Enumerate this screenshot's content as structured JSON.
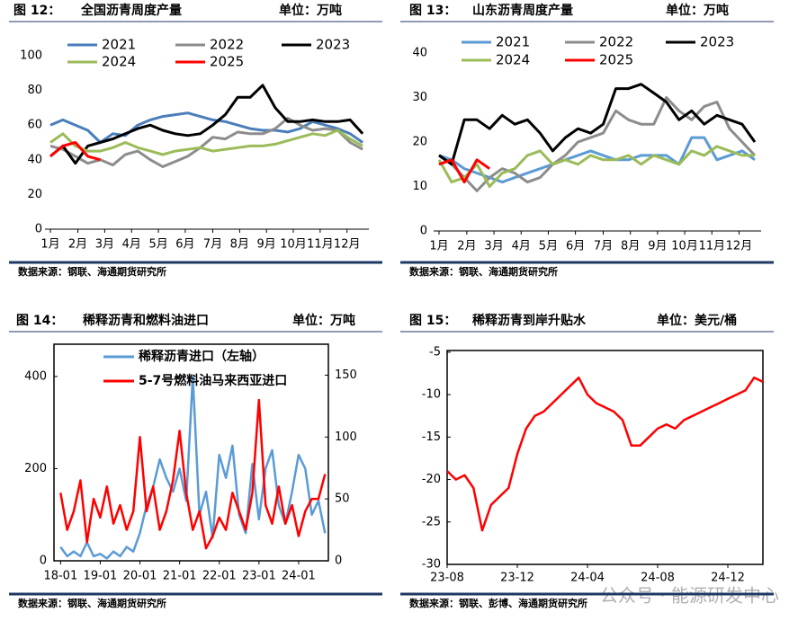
{
  "watermark": "公众号 · 能源研发中心",
  "chart_data": [
    {
      "type": "line",
      "figure_label": "图 12：",
      "title": "全国沥青周度产量",
      "unit": "单位：万吨",
      "source": "数据来源：钢联、海通期货研究所",
      "x": [
        1,
        3,
        5,
        7,
        9,
        11,
        13,
        15,
        17,
        19,
        21,
        23,
        25,
        27,
        29,
        31,
        33,
        35,
        37,
        39,
        41,
        43,
        45,
        47,
        49,
        51
      ],
      "xlim": [
        1,
        52
      ],
      "xticks": [
        {
          "value": 1,
          "label": "1月"
        },
        {
          "value": 5.4,
          "label": "2月"
        },
        {
          "value": 9.7,
          "label": "3月"
        },
        {
          "value": 14,
          "label": "4月"
        },
        {
          "value": 18.3,
          "label": "5月"
        },
        {
          "value": 22.6,
          "label": "6月"
        },
        {
          "value": 27,
          "label": "7月"
        },
        {
          "value": 31.3,
          "label": "8月"
        },
        {
          "value": 35.6,
          "label": "9月"
        },
        {
          "value": 39.9,
          "label": "10月"
        },
        {
          "value": 44.2,
          "label": "11月"
        },
        {
          "value": 48.5,
          "label": "12月"
        }
      ],
      "ylim": [
        0,
        100
      ],
      "yticks": [
        0,
        20,
        40,
        60,
        80,
        100
      ],
      "series": [
        {
          "name": "2021",
          "color": "#4a7ebb",
          "values": [
            60,
            63,
            60,
            57,
            50,
            55,
            54,
            60,
            63,
            65,
            66,
            67,
            65,
            63,
            62,
            60,
            58,
            57,
            57,
            56,
            58,
            62,
            60,
            58,
            55,
            50
          ]
        },
        {
          "name": "2022",
          "color": "#8c8c8c",
          "values": [
            48,
            46,
            42,
            38,
            40,
            37,
            43,
            45,
            40,
            36,
            39,
            42,
            47,
            53,
            52,
            56,
            55,
            55,
            58,
            64,
            60,
            57,
            58,
            57,
            50,
            46
          ]
        },
        {
          "name": "2023",
          "color": "#000000",
          "values": [
            42,
            48,
            38,
            48,
            50,
            52,
            55,
            58,
            60,
            57,
            55,
            54,
            55,
            60,
            66,
            76,
            76,
            83,
            70,
            62,
            62,
            63,
            62,
            62,
            63,
            55
          ]
        },
        {
          "name": "2024",
          "color": "#9bbb59",
          "values": [
            50,
            55,
            48,
            45,
            45,
            47,
            50,
            47,
            45,
            43,
            45,
            46,
            47,
            45,
            46,
            47,
            48,
            48,
            49,
            51,
            53,
            55,
            54,
            57,
            52,
            48
          ]
        },
        {
          "name": "2025",
          "color": "#ff0000",
          "values": [
            42,
            48,
            50,
            42,
            40,
            null,
            null,
            null,
            null,
            null,
            null,
            null,
            null,
            null,
            null,
            null,
            null,
            null,
            null,
            null,
            null,
            null,
            null,
            null,
            null,
            null
          ]
        }
      ]
    },
    {
      "type": "line",
      "figure_label": "图 13：",
      "title": "山东沥青周度产量",
      "unit": "单位：万吨",
      "source": "数据来源：钢联、海通期货研究所",
      "x": [
        1,
        3,
        5,
        7,
        9,
        11,
        13,
        15,
        17,
        19,
        21,
        23,
        25,
        27,
        29,
        31,
        33,
        35,
        37,
        39,
        41,
        43,
        45,
        47,
        49,
        51
      ],
      "xlim": [
        1,
        52
      ],
      "xticks": [
        {
          "value": 1,
          "label": "1月"
        },
        {
          "value": 5.4,
          "label": "2月"
        },
        {
          "value": 9.7,
          "label": "3月"
        },
        {
          "value": 14,
          "label": "4月"
        },
        {
          "value": 18.3,
          "label": "5月"
        },
        {
          "value": 22.6,
          "label": "6月"
        },
        {
          "value": 27,
          "label": "7月"
        },
        {
          "value": 31.3,
          "label": "8月"
        },
        {
          "value": 35.6,
          "label": "9月"
        },
        {
          "value": 39.9,
          "label": "10月"
        },
        {
          "value": 44.2,
          "label": "11月"
        },
        {
          "value": 48.5,
          "label": "12月"
        }
      ],
      "ylim": [
        0,
        40
      ],
      "yticks": [
        0,
        10,
        20,
        30,
        40
      ],
      "series": [
        {
          "name": "2021",
          "color": "#5b9bd5",
          "values": [
            17,
            16,
            14,
            13,
            12,
            11,
            12,
            13,
            14,
            15,
            16,
            17,
            18,
            17,
            16,
            16,
            17,
            17,
            17,
            15,
            21,
            21,
            16,
            17,
            18,
            16
          ]
        },
        {
          "name": "2022",
          "color": "#8c8c8c",
          "values": [
            17,
            15,
            12,
            9,
            12,
            14,
            13,
            11,
            12,
            15,
            17,
            20,
            21,
            22,
            27,
            25,
            24,
            24,
            30,
            27,
            25,
            28,
            29,
            23,
            20,
            17
          ]
        },
        {
          "name": "2023",
          "color": "#000000",
          "values": [
            17,
            15,
            25,
            25,
            23,
            26,
            24,
            25,
            22,
            18,
            21,
            23,
            22,
            24,
            32,
            32,
            33,
            31,
            29,
            25,
            27,
            24,
            26,
            25,
            24,
            20
          ]
        },
        {
          "name": "2024",
          "color": "#9bbb59",
          "values": [
            16,
            11,
            12,
            15,
            10,
            13,
            14,
            17,
            18,
            15,
            16,
            15,
            17,
            16,
            16,
            17,
            15,
            17,
            16,
            15,
            18,
            17,
            19,
            18,
            17,
            17
          ]
        },
        {
          "name": "2025",
          "color": "#ff0000",
          "values": [
            15,
            16,
            11,
            16,
            14,
            null,
            null,
            null,
            null,
            null,
            null,
            null,
            null,
            null,
            null,
            null,
            null,
            null,
            null,
            null,
            null,
            null,
            null,
            null,
            null,
            null
          ]
        }
      ]
    },
    {
      "type": "line",
      "figure_label": "图 14：",
      "title": "稀释沥青和燃料油进口",
      "unit": "单位：万吨",
      "source": "数据来源：钢联、海通期货研究所",
      "x": [
        0,
        2,
        4,
        6,
        8,
        10,
        12,
        14,
        16,
        18,
        20,
        22,
        24,
        26,
        28,
        30,
        32,
        34,
        36,
        38,
        40,
        42,
        44,
        46,
        48,
        50,
        52,
        54,
        56,
        58,
        60,
        62,
        64,
        66,
        68,
        70,
        72,
        74,
        76,
        78,
        80
      ],
      "xlim": [
        -2,
        81
      ],
      "xticks": [
        {
          "value": 0,
          "label": "18-01"
        },
        {
          "value": 12,
          "label": "19-01"
        },
        {
          "value": 24,
          "label": "20-01"
        },
        {
          "value": 36,
          "label": "21-01"
        },
        {
          "value": 48,
          "label": "22-01"
        },
        {
          "value": 60,
          "label": "23-01"
        },
        {
          "value": 72,
          "label": "24-01"
        }
      ],
      "ylim": [
        0,
        470
      ],
      "yticks": [
        0,
        200,
        400
      ],
      "y2lim": [
        0,
        175
      ],
      "y2ticks": [
        0,
        50,
        100,
        150
      ],
      "series": [
        {
          "name": "稀释沥青进口（左轴）",
          "color": "#5b9bd5",
          "values": [
            30,
            10,
            20,
            10,
            40,
            10,
            15,
            5,
            20,
            10,
            30,
            20,
            60,
            120,
            160,
            220,
            180,
            150,
            200,
            130,
            400,
            100,
            150,
            50,
            230,
            180,
            250,
            100,
            60,
            210,
            90,
            200,
            240,
            120,
            80,
            150,
            230,
            200,
            100,
            130,
            60
          ]
        },
        {
          "name": "5-7号燃料油马来西亚进口",
          "color": "#ff0000",
          "axis": "y2",
          "values": [
            55,
            25,
            40,
            65,
            15,
            50,
            35,
            60,
            30,
            45,
            25,
            40,
            100,
            40,
            60,
            25,
            40,
            65,
            105,
            55,
            25,
            40,
            10,
            20,
            35,
            25,
            55,
            40,
            25,
            55,
            130,
            45,
            30,
            60,
            30,
            45,
            20,
            40,
            50,
            50,
            70
          ]
        }
      ]
    },
    {
      "type": "line",
      "figure_label": "图 15：",
      "title": "稀释沥青到岸升贴水",
      "unit": "单位：美元/桶",
      "source": "数据来源：钢联、彭博、海通期货研究所",
      "x": [
        0,
        0.5,
        1,
        1.5,
        2,
        2.5,
        3,
        3.5,
        4,
        4.5,
        5,
        5.5,
        6,
        6.5,
        7,
        7.5,
        8,
        8.5,
        9,
        9.5,
        10,
        10.5,
        11,
        11.5,
        12,
        12.5,
        13,
        13.5,
        14,
        14.5,
        15,
        15.5,
        16,
        16.5,
        17,
        17.5,
        18
      ],
      "xlim": [
        0,
        18
      ],
      "xticks": [
        {
          "value": 0,
          "label": "23-08"
        },
        {
          "value": 4,
          "label": "23-12"
        },
        {
          "value": 8,
          "label": "24-04"
        },
        {
          "value": 12,
          "label": "24-08"
        },
        {
          "value": 16,
          "label": "24-12"
        }
      ],
      "ylim": [
        -30,
        -4.8
      ],
      "yticks": [
        -30,
        -25,
        -20,
        -15,
        -10,
        -5
      ],
      "series": [
        {
          "color": "#ff0000",
          "values": [
            -19,
            -20,
            -19.5,
            -21,
            -26,
            -23,
            -22,
            -21,
            -17,
            -14,
            -12.5,
            -12,
            -11,
            -10,
            -9,
            -8,
            -10,
            -11,
            -11.5,
            -12,
            -13,
            -16,
            -16,
            -15,
            -14,
            -13.5,
            -14,
            -13,
            -12.5,
            -12,
            -11.5,
            -11,
            -10.5,
            -10,
            -9.5,
            -8,
            -8.5
          ]
        }
      ]
    }
  ]
}
